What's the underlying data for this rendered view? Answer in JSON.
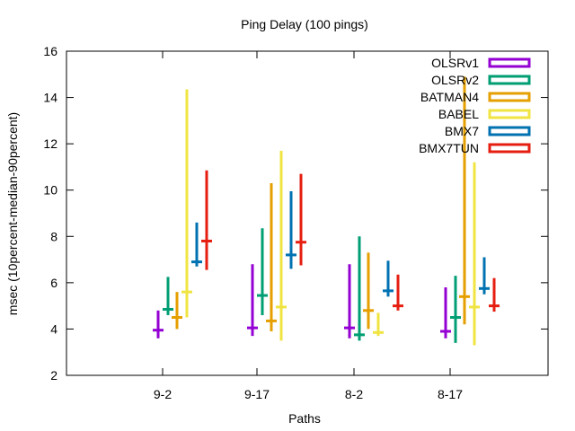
{
  "chart_data": {
    "type": "errorbar",
    "title": "Ping Delay (100 pings)",
    "xlabel": "Paths",
    "ylabel": "msec (10percent-median-90percent)",
    "ylim": [
      2,
      16
    ],
    "yticks": [
      2,
      4,
      6,
      8,
      10,
      12,
      14,
      16
    ],
    "categories": [
      "9-2",
      "9-17",
      "8-2",
      "8-17"
    ],
    "grid": false,
    "legend_position": "top-right",
    "series": [
      {
        "name": "OLSRv1",
        "color": "#9400d3",
        "low": [
          3.6,
          3.7,
          3.6,
          3.6
        ],
        "median": [
          3.95,
          4.05,
          4.05,
          3.9
        ],
        "high": [
          4.8,
          6.8,
          6.8,
          5.8
        ]
      },
      {
        "name": "OLSRv2",
        "color": "#009e73",
        "low": [
          4.6,
          4.6,
          3.5,
          3.4
        ],
        "median": [
          4.85,
          5.45,
          3.75,
          4.5
        ],
        "high": [
          6.25,
          8.35,
          8.0,
          6.3
        ]
      },
      {
        "name": "BATMAN4",
        "color": "#e69f00",
        "low": [
          4.0,
          3.9,
          4.0,
          4.2
        ],
        "median": [
          4.5,
          4.35,
          4.8,
          5.4
        ],
        "high": [
          5.6,
          10.3,
          7.3,
          14.9
        ]
      },
      {
        "name": "BABEL",
        "color": "#f0e442",
        "low": [
          4.5,
          3.5,
          3.7,
          3.3
        ],
        "median": [
          5.6,
          4.95,
          3.85,
          4.95
        ],
        "high": [
          14.35,
          11.7,
          4.7,
          11.2
        ]
      },
      {
        "name": "BMX7",
        "color": "#0072b2",
        "low": [
          6.7,
          6.6,
          5.4,
          5.5
        ],
        "median": [
          6.9,
          7.2,
          5.65,
          5.75
        ],
        "high": [
          8.6,
          9.95,
          6.95,
          7.1
        ]
      },
      {
        "name": "BMX7TUN",
        "color": "#e51e10",
        "low": [
          6.55,
          6.75,
          4.8,
          4.75
        ],
        "median": [
          7.8,
          7.75,
          5.0,
          5.0
        ],
        "high": [
          10.85,
          10.7,
          6.35,
          6.2
        ]
      }
    ]
  }
}
